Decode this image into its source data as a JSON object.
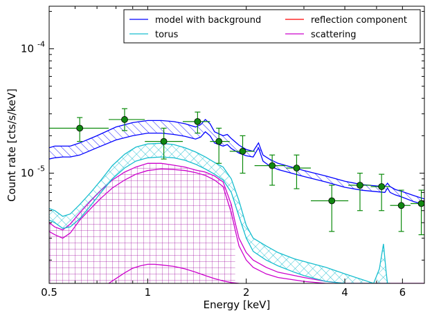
{
  "chart_data": {
    "type": "line",
    "xlabel": "Energy [keV]",
    "ylabel": "Count rate [cts/s/keV]",
    "xscale": "log",
    "yscale": "log",
    "xlim": [
      0.5,
      7.0
    ],
    "ylim": [
      1.3e-06,
      0.00022
    ],
    "x_ticks": [
      {
        "value": 0.5,
        "label": "0.5"
      },
      {
        "value": 1,
        "label": "1"
      },
      {
        "value": 2,
        "label": "2"
      },
      {
        "value": 4,
        "label": "4"
      },
      {
        "value": 6,
        "label": "6"
      }
    ],
    "y_ticks": [
      {
        "value": 1e-05,
        "label": "10",
        "exp": "-5"
      },
      {
        "value": 0.0001,
        "label": "10",
        "exp": "-4"
      }
    ],
    "legend": {
      "position": "top-right",
      "columns": 2,
      "entries": [
        {
          "label": "model with background",
          "color": "#0000ff"
        },
        {
          "label": "reflection component",
          "color": "#ff0000"
        },
        {
          "label": "torus",
          "color": "#17becf"
        },
        {
          "label": "scattering",
          "color": "#cc00cc"
        }
      ]
    },
    "series": [
      {
        "name": "model with background",
        "color": "#0000ff",
        "hatch": "diagonal",
        "x": [
          0.5,
          0.52,
          0.55,
          0.58,
          0.62,
          0.7,
          0.8,
          0.9,
          1.0,
          1.1,
          1.2,
          1.3,
          1.4,
          1.45,
          1.5,
          1.55,
          1.6,
          1.7,
          1.75,
          1.8,
          1.9,
          2.0,
          2.1,
          2.18,
          2.25,
          2.35,
          2.5,
          3.0,
          3.5,
          4.0,
          4.5,
          5.0,
          5.3,
          5.4,
          5.5,
          5.7,
          6.0,
          6.5,
          7.0
        ],
        "upper": [
          1.6e-05,
          1.65e-05,
          1.65e-05,
          1.65e-05,
          1.75e-05,
          2e-05,
          2.35e-05,
          2.55e-05,
          2.65e-05,
          2.65e-05,
          2.6e-05,
          2.5e-05,
          2.35e-05,
          2.45e-05,
          2.7e-05,
          2.5e-05,
          2.15e-05,
          2e-05,
          2.05e-05,
          1.9e-05,
          1.68e-05,
          1.55e-05,
          1.5e-05,
          1.75e-05,
          1.4e-05,
          1.3e-05,
          1.2e-05,
          1.05e-05,
          9.5e-06,
          8.6e-06,
          8.1e-06,
          7.9e-06,
          7.8e-06,
          8.3e-06,
          7.8e-06,
          7.4e-06,
          7.1e-06,
          6.6e-06,
          6.2e-06
        ],
        "lower": [
          1.3e-05,
          1.33e-05,
          1.35e-05,
          1.35e-05,
          1.4e-05,
          1.6e-05,
          1.85e-05,
          2e-05,
          2.1e-05,
          2.1e-05,
          2.05e-05,
          1.98e-05,
          1.88e-05,
          1.95e-05,
          2.15e-05,
          2e-05,
          1.75e-05,
          1.65e-05,
          1.7e-05,
          1.58e-05,
          1.45e-05,
          1.38e-05,
          1.35e-05,
          1.6e-05,
          1.25e-05,
          1.15e-05,
          1.07e-05,
          9.4e-06,
          8.5e-06,
          7.7e-06,
          7.3e-06,
          7.1e-06,
          7e-06,
          7.6e-06,
          7e-06,
          6.7e-06,
          6.4e-06,
          5.9e-06,
          5.6e-06
        ]
      },
      {
        "name": "torus",
        "color": "#17becf",
        "hatch": "cross",
        "x": [
          0.5,
          0.52,
          0.55,
          0.58,
          0.62,
          0.67,
          0.72,
          0.78,
          0.85,
          0.92,
          1.0,
          1.1,
          1.2,
          1.3,
          1.4,
          1.5,
          1.6,
          1.7,
          1.8,
          1.9,
          2.0,
          2.1,
          2.3,
          2.5,
          2.8,
          3.0,
          3.5,
          4.0,
          4.5,
          4.9,
          5.1,
          5.25,
          5.35,
          5.4,
          5.45,
          5.5
        ],
        "upper": [
          5.2e-06,
          5e-06,
          4.5e-06,
          4.7e-06,
          5.6e-06,
          7e-06,
          8.8e-06,
          1.15e-05,
          1.42e-05,
          1.62e-05,
          1.72e-05,
          1.74e-05,
          1.7e-05,
          1.6e-05,
          1.48e-05,
          1.35e-05,
          1.22e-05,
          1.12e-05,
          9e-06,
          6e-06,
          3.8e-06,
          3e-06,
          2.6e-06,
          2.3e-06,
          2.05e-06,
          1.95e-06,
          1.75e-06,
          1.55e-06,
          1.4e-06,
          1.3e-06,
          1.7e-06,
          2.7e-06,
          1.6e-06,
          1.3e-06,
          1.3e-06,
          1.3e-06
        ],
        "lower": [
          4.2e-06,
          4e-06,
          3.6e-06,
          3.7e-06,
          4.3e-06,
          5.5e-06,
          7e-06,
          9e-06,
          1.1e-05,
          1.25e-05,
          1.33e-05,
          1.35e-05,
          1.33e-05,
          1.27e-05,
          1.18e-05,
          1.08e-05,
          9.8e-06,
          8.8e-06,
          7e-06,
          4.5e-06,
          3e-06,
          2.35e-06,
          2e-06,
          1.8e-06,
          1.6e-06,
          1.5e-06,
          1.35e-06,
          1.3e-06,
          1.3e-06,
          1.3e-06,
          1.3e-06,
          1.3e-06,
          1.3e-06,
          1.3e-06,
          1.3e-06,
          1.3e-06
        ]
      },
      {
        "name": "scattering",
        "color": "#cc00cc",
        "hatch": "grid",
        "x": [
          0.5,
          0.52,
          0.55,
          0.58,
          0.62,
          0.67,
          0.72,
          0.78,
          0.85,
          0.92,
          1.0,
          1.1,
          1.2,
          1.3,
          1.4,
          1.5,
          1.6,
          1.7,
          1.8,
          1.85,
          1.9,
          2.0,
          2.1,
          2.3,
          2.5,
          3.0,
          3.5,
          4.0,
          4.5,
          5.0,
          5.5,
          6.0,
          7.0
        ],
        "upper": [
          4e-06,
          3.7e-06,
          3.5e-06,
          3.9e-06,
          4.8e-06,
          6e-06,
          7.3e-06,
          8.8e-06,
          1.02e-05,
          1.12e-05,
          1.2e-05,
          1.2e-05,
          1.16e-05,
          1.12e-05,
          1.06e-05,
          1.02e-05,
          9.5e-06,
          8.5e-06,
          5.6e-06,
          4e-06,
          3e-06,
          2.3e-06,
          2e-06,
          1.75e-06,
          1.6e-06,
          1.45e-06,
          1.35e-06,
          1.3e-06,
          1.3e-06,
          1.3e-06,
          1.3e-06,
          1.3e-06,
          1.3e-06
        ],
        "lower": [
          3.4e-06,
          3.2e-06,
          3e-06,
          3.3e-06,
          4.2e-06,
          5.2e-06,
          6.3e-06,
          7.6e-06,
          8.8e-06,
          9.8e-06,
          1.05e-05,
          1.08e-05,
          1.07e-05,
          1.05e-05,
          1.01e-05,
          9.6e-06,
          8.8e-06,
          7.8e-06,
          4.8e-06,
          3.5e-06,
          2.6e-06,
          2e-06,
          1.75e-06,
          1.55e-06,
          1.45e-06,
          1.35e-06,
          1.3e-06,
          1.3e-06,
          1.3e-06,
          1.3e-06,
          1.3e-06,
          1.3e-06,
          1.3e-06
        ],
        "fill_range": [
          0.5,
          1.85
        ]
      },
      {
        "name": "scattering (lower)",
        "color": "#cc00cc",
        "x": [
          0.76,
          0.8,
          0.85,
          0.9,
          0.95,
          1.0,
          1.05,
          1.1,
          1.2,
          1.3,
          1.4,
          1.5,
          1.6,
          1.7,
          1.8,
          1.9
        ],
        "y": [
          1.3e-06,
          1.42e-06,
          1.58e-06,
          1.72e-06,
          1.8e-06,
          1.85e-06,
          1.85e-06,
          1.83e-06,
          1.78e-06,
          1.7e-06,
          1.6e-06,
          1.5e-06,
          1.42e-06,
          1.36e-06,
          1.32e-06,
          1.3e-06
        ]
      }
    ],
    "data_points": {
      "name": "data",
      "color": "#0a8a0a",
      "marker": "circle",
      "points": [
        {
          "x": 0.62,
          "y": 2.3e-05,
          "xerr": [
            0.5,
            0.76
          ],
          "yerr": [
            1.8e-05,
            2.8e-05
          ]
        },
        {
          "x": 0.85,
          "y": 2.7e-05,
          "xerr": [
            0.76,
            0.98
          ],
          "yerr": [
            2.2e-05,
            3.3e-05
          ]
        },
        {
          "x": 1.12,
          "y": 1.8e-05,
          "xerr": [
            0.98,
            1.28
          ],
          "yerr": [
            1.3e-05,
            2.3e-05
          ]
        },
        {
          "x": 1.42,
          "y": 2.6e-05,
          "xerr": [
            1.28,
            1.55
          ],
          "yerr": [
            2.1e-05,
            3.1e-05
          ]
        },
        {
          "x": 1.65,
          "y": 1.8e-05,
          "xerr": [
            1.55,
            1.78
          ],
          "yerr": [
            1.2e-05,
            2.3e-05
          ]
        },
        {
          "x": 1.95,
          "y": 1.5e-05,
          "xerr": [
            1.78,
            2.12
          ],
          "yerr": [
            1e-05,
            2e-05
          ]
        },
        {
          "x": 2.4,
          "y": 1.15e-05,
          "xerr": [
            2.12,
            2.65
          ],
          "yerr": [
            8e-06,
            1.4e-05
          ]
        },
        {
          "x": 2.85,
          "y": 1.1e-05,
          "xerr": [
            2.65,
            3.15
          ],
          "yerr": [
            7.5e-06,
            1.4e-05
          ]
        },
        {
          "x": 3.65,
          "y": 6e-06,
          "xerr": [
            3.15,
            4.1
          ],
          "yerr": [
            3.4e-06,
            8e-06
          ]
        },
        {
          "x": 4.45,
          "y": 8e-06,
          "xerr": [
            4.1,
            4.8
          ],
          "yerr": [
            5e-06,
            1e-05
          ]
        },
        {
          "x": 5.18,
          "y": 7.8e-06,
          "xerr": [
            4.8,
            5.5
          ],
          "yerr": [
            5e-06,
            9.8e-06
          ]
        },
        {
          "x": 5.95,
          "y": 5.5e-06,
          "xerr": [
            5.5,
            6.35
          ],
          "yerr": [
            3.4e-06,
            7.3e-06
          ]
        },
        {
          "x": 6.85,
          "y": 5.7e-06,
          "xerr": [
            6.35,
            7.0
          ],
          "yerr": [
            3.2e-06,
            7.3e-06
          ]
        }
      ]
    }
  }
}
